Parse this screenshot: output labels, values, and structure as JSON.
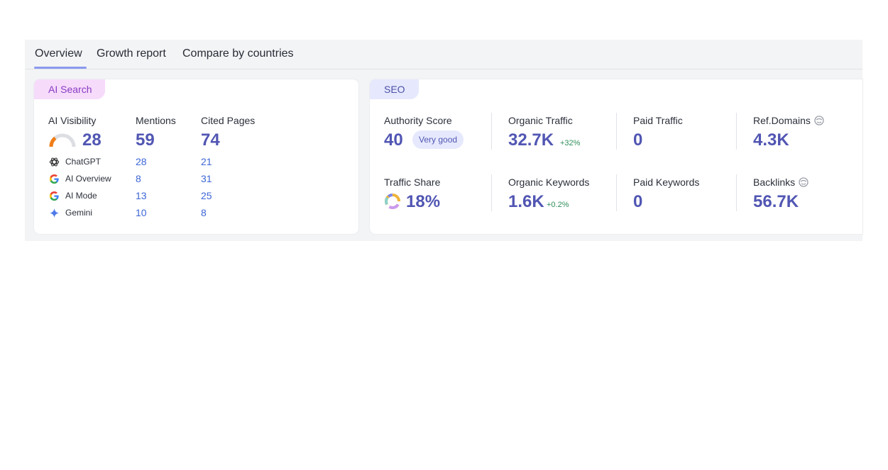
{
  "tabs": [
    {
      "label": "Overview",
      "active": true
    },
    {
      "label": "Growth report"
    },
    {
      "label": "Compare by countries"
    }
  ],
  "ai_search": {
    "badge": "AI Search",
    "columns": {
      "visibility": "AI Visibility",
      "mentions": "Mentions",
      "cited": "Cited Pages"
    },
    "totals": {
      "visibility": "28",
      "mentions": "59",
      "cited": "74"
    },
    "gauge_fraction": 0.28,
    "sources": [
      {
        "name": "ChatGPT",
        "icon": "chatgpt-icon",
        "mentions": "28",
        "cited": "21"
      },
      {
        "name": "AI Overview",
        "icon": "google-icon",
        "mentions": "8",
        "cited": "31"
      },
      {
        "name": "AI Mode",
        "icon": "google-icon",
        "mentions": "13",
        "cited": "25"
      },
      {
        "name": "Gemini",
        "icon": "gemini-icon",
        "mentions": "10",
        "cited": "8"
      }
    ]
  },
  "seo": {
    "badge": "SEO",
    "authority_score": {
      "label": "Authority Score",
      "value": "40",
      "rating": "Very good"
    },
    "organic_traffic": {
      "label": "Organic Traffic",
      "value": "32.7K",
      "delta": "+32%"
    },
    "paid_traffic": {
      "label": "Paid Traffic",
      "value": "0"
    },
    "ref_domains": {
      "label": "Ref.Domains",
      "value": "4.3K"
    },
    "traffic_share": {
      "label": "Traffic Share",
      "value": "18%"
    },
    "organic_keywords": {
      "label": "Organic Keywords",
      "value": "1.6K",
      "delta": "+0.2%"
    },
    "paid_keywords": {
      "label": "Paid Keywords",
      "value": "0"
    },
    "backlinks": {
      "label": "Backlinks",
      "value": "56.7K"
    }
  },
  "colors": {
    "accent": "#5156b3",
    "link": "#3d66d6",
    "positive": "#2f8e5a",
    "ai_badge": "#f6dbfb",
    "seo_badge": "#e6e9fd",
    "gauge_fill": "#f07d17"
  }
}
